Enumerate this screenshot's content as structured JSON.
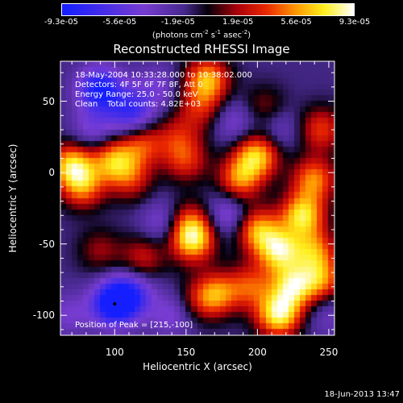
{
  "chart_data": {
    "type": "heatmap",
    "title": "Reconstructed RHESSI Image",
    "xlabel": "Heliocentric X (arcsec)",
    "ylabel": "Heliocentric Y (arcsec)",
    "xlim": [
      62,
      254
    ],
    "ylim": [
      -114,
      78
    ],
    "xticks": [
      "100",
      "150",
      "200",
      "250"
    ],
    "xtick_values": [
      100,
      150,
      200,
      250
    ],
    "yticks": [
      "50",
      "0",
      "-50",
      "-100"
    ],
    "ytick_values": [
      50,
      0,
      -50,
      -100
    ],
    "colorbar": {
      "ticks": [
        "-9.3e-05",
        "-5.6e-05",
        "-1.9e-05",
        "1.9e-05",
        "5.6e-05",
        "9.3e-05"
      ],
      "tick_values": [
        -9.3e-05,
        -5.6e-05,
        -1.9e-05,
        1.9e-05,
        5.6e-05,
        9.3e-05
      ],
      "range": [
        -9.3e-05,
        9.3e-05
      ],
      "units_pre": "(photons cm",
      "units_sup1": "-2",
      "units_mid": " s",
      "units_sup2": "-1",
      "units_post": " asec",
      "units_sup3": "-2",
      "units_end": ")"
    },
    "annotations": {
      "time": "18-May-2004 10:33:28.000 to 10:38:02.000",
      "detectors": "Detectors: 4F 5F 6F 7F 8F, Att 0",
      "energy": "Energy Range: 25.0 - 50.0 keV",
      "clean": "Clean",
      "counts": "Total counts: 4.82E+03",
      "peak": "Position of Peak = [215,-100]"
    },
    "peak_position": [
      215,
      -100
    ],
    "map_resolution_arcsec": 4,
    "blobs": [
      {
        "x": 70,
        "y": 5,
        "v": 8e-05
      },
      {
        "x": 78,
        "y": -10,
        "v": 6e-05
      },
      {
        "x": 100,
        "y": 8,
        "v": 7e-05
      },
      {
        "x": 120,
        "y": 20,
        "v": 5e-05
      },
      {
        "x": 112,
        "y": -5,
        "v": 4e-05
      },
      {
        "x": 90,
        "y": -55,
        "v": 3e-05
      },
      {
        "x": 120,
        "y": -60,
        "v": 4e-05
      },
      {
        "x": 165,
        "y": 65,
        "v": 7.5e-05
      },
      {
        "x": 160,
        "y": 45,
        "v": 4e-05
      },
      {
        "x": 205,
        "y": 45,
        "v": 3e-05
      },
      {
        "x": 150,
        "y": 8,
        "v": 4.5e-05
      },
      {
        "x": 145,
        "y": 25,
        "v": 3.5e-05
      },
      {
        "x": 200,
        "y": 12,
        "v": 8e-05
      },
      {
        "x": 188,
        "y": -5,
        "v": 6.5e-05
      },
      {
        "x": 155,
        "y": -48,
        "v": 8e-05
      },
      {
        "x": 152,
        "y": -35,
        "v": 5e-05
      },
      {
        "x": 172,
        "y": -85,
        "v": 6e-05
      },
      {
        "x": 160,
        "y": -90,
        "v": 3e-05
      },
      {
        "x": 200,
        "y": -40,
        "v": 7e-05
      },
      {
        "x": 215,
        "y": -55,
        "v": 8.5e-05
      },
      {
        "x": 232,
        "y": -30,
        "v": 8.5e-05
      },
      {
        "x": 240,
        "y": -5,
        "v": 6.5e-05
      },
      {
        "x": 245,
        "y": 30,
        "v": 5e-05
      },
      {
        "x": 225,
        "y": -80,
        "v": 8e-05
      },
      {
        "x": 215,
        "y": -100,
        "v": 9.3e-05
      },
      {
        "x": 245,
        "y": -75,
        "v": 6e-05
      },
      {
        "x": 195,
        "y": -80,
        "v": 5e-05
      },
      {
        "x": 240,
        "y": -55,
        "v": 6e-05
      },
      {
        "x": 90,
        "y": 58,
        "v": -8e-05
      },
      {
        "x": 112,
        "y": 42,
        "v": -6e-05
      },
      {
        "x": 100,
        "y": -92,
        "v": -9.3e-05
      },
      {
        "x": 112,
        "y": -85,
        "v": -5e-05
      },
      {
        "x": 135,
        "y": -35,
        "v": -3.5e-05
      },
      {
        "x": 185,
        "y": 35,
        "v": -3e-05
      },
      {
        "x": 180,
        "y": -30,
        "v": -4e-05
      },
      {
        "x": 85,
        "y": 30,
        "v": -3e-05
      },
      {
        "x": 215,
        "y": 30,
        "v": -2.5e-05
      },
      {
        "x": 130,
        "y": 60,
        "v": -2.5e-05
      },
      {
        "x": 140,
        "y": -100,
        "v": -3e-05
      },
      {
        "x": 250,
        "y": -100,
        "v": -2e-05
      },
      {
        "x": 68,
        "y": -100,
        "v": -2.5e-05
      }
    ]
  },
  "footer": {
    "timestamp": "18-Jun-2013 13:47"
  }
}
